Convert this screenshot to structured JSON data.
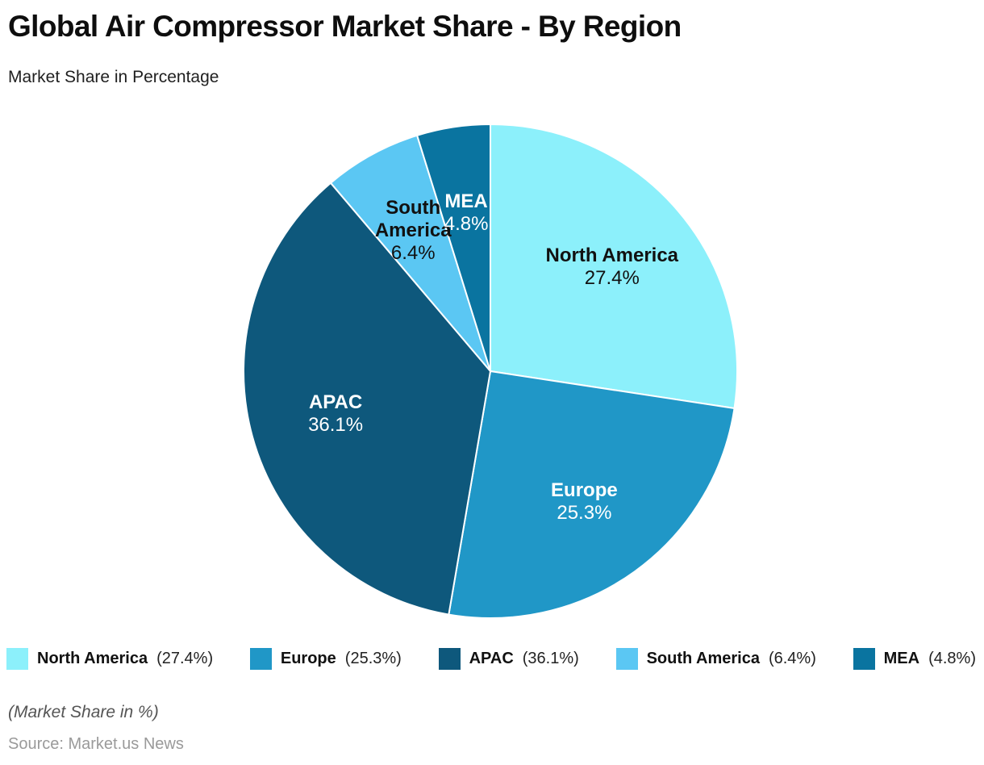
{
  "header": {
    "title": "Global Air Compressor Market Share - By Region",
    "subtitle": "Market Share in Percentage"
  },
  "footer": {
    "note": "(Market Share in %)",
    "source": "Source: Market.us News"
  },
  "chart_data": {
    "type": "pie",
    "title": "Global Air Compressor Market Share - By Region",
    "subtitle": "Market Share in Percentage",
    "unit": "%",
    "categories": [
      "North America",
      "Europe",
      "APAC",
      "South America",
      "MEA"
    ],
    "values": [
      27.4,
      25.3,
      36.1,
      6.4,
      4.8
    ],
    "colors": [
      "#8CF0FB",
      "#2097C7",
      "#0E587C",
      "#5BC7F3",
      "#0A74A0"
    ],
    "label_colors": [
      "#111111",
      "#ffffff",
      "#ffffff",
      "#111111",
      "#ffffff"
    ],
    "label_lines": [
      [
        "North America"
      ],
      [
        "Europe"
      ],
      [
        "APAC"
      ],
      [
        "South",
        "America"
      ],
      [
        "MEA"
      ]
    ],
    "slice_border_color": "#ffffff",
    "start_angle_deg": 0,
    "direction": "clockwise",
    "legend_position": "bottom",
    "legend_format": "{name} ({value}%)"
  }
}
